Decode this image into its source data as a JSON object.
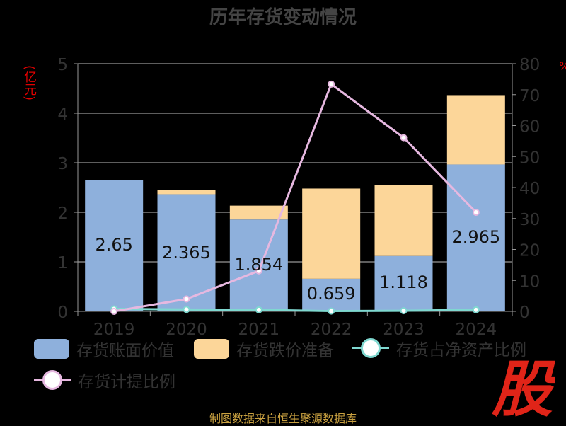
{
  "title": "历年存货变动情况",
  "footer": "制图数据来自恒生聚源数据库",
  "logo_text": "股",
  "chart_data": {
    "type": "bar",
    "title": "历年存货变动情况",
    "categories": [
      "2019",
      "2020",
      "2021",
      "2022",
      "2023",
      "2024"
    ],
    "ylabel_left": "(亿元)",
    "ylabel_right": "%",
    "ylim_left": [
      0,
      5
    ],
    "ylim_right": [
      0,
      80
    ],
    "yticks_left": [
      "0",
      "1",
      "2",
      "3",
      "4",
      "5"
    ],
    "yticks_right": [
      "0",
      "10",
      "20",
      "30",
      "40",
      "50",
      "60",
      "70",
      "80"
    ],
    "grid": true,
    "legend_position": "bottom",
    "series": [
      {
        "name": "存货账面价值",
        "kind": "bar",
        "axis": "left",
        "color": "#8eb0dc",
        "values": [
          2.65,
          2.365,
          1.854,
          0.659,
          1.118,
          2.965
        ],
        "labels": [
          "2.65",
          "2.365",
          "1.854",
          "0.659",
          "1.118",
          "2.965"
        ]
      },
      {
        "name": "存货跌价准备",
        "kind": "bar",
        "axis": "left",
        "color": "#fcd699",
        "values": [
          0.0,
          0.09,
          0.28,
          1.82,
          1.43,
          1.4
        ]
      },
      {
        "name": "存货占净资产比例",
        "kind": "line",
        "axis": "right",
        "color": "#7fd8d0",
        "values": [
          0.8,
          0.6,
          0.5,
          0.1,
          0.2,
          0.5
        ]
      },
      {
        "name": "存货计提比例",
        "kind": "line",
        "axis": "right",
        "color": "#e6b8e0",
        "values": [
          0.0,
          4.0,
          13.1,
          73.4,
          56.1,
          32.0
        ]
      }
    ]
  }
}
